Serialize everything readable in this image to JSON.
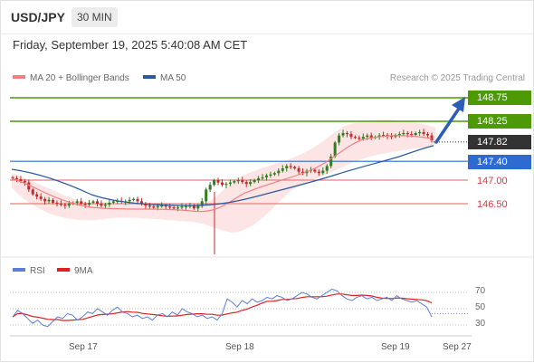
{
  "header": {
    "symbol": "USD/JPY",
    "timeframe": "30 MIN"
  },
  "date_line": "Friday, September 19, 2025 5:40:08 AM CET",
  "legend": {
    "ma20": {
      "label": "MA 20 + Bollinger Bands",
      "color": "#f08080"
    },
    "ma50": {
      "label": "MA 50",
      "color": "#2a5a9c"
    },
    "credit": "Research © 2025 Trading Central"
  },
  "levels": [
    {
      "label": "148.75",
      "style": "green"
    },
    {
      "label": "148.25",
      "style": "green"
    },
    {
      "label": "147.82",
      "style": "dark"
    },
    {
      "label": "147.40",
      "style": "blue"
    },
    {
      "label": "147.00",
      "style": "redtxt"
    },
    {
      "label": "146.50",
      "style": "redtxt"
    }
  ],
  "rsi_legend": {
    "rsi": {
      "label": "RSI",
      "color": "#5b7fd6"
    },
    "ma9": {
      "label": "9MA",
      "color": "#e02020"
    }
  },
  "rsi_ticks": [
    "70",
    "50",
    "30"
  ],
  "x_ticks": [
    "Sep 17",
    "Sep 18",
    "Sep 19",
    "Sep 27"
  ],
  "colors": {
    "up": "#2e7d1e",
    "down": "#c62828",
    "level_green": "#4e9a06",
    "level_blue": "#2e6bd0",
    "level_red": "#e88080"
  },
  "chart_data": {
    "type": "candlestick",
    "y_axis_values": [
      148.75,
      148.25,
      147.82,
      147.4,
      147.0,
      146.5
    ],
    "current_price": 147.82,
    "rsi_levels": [
      70,
      50,
      30
    ]
  }
}
